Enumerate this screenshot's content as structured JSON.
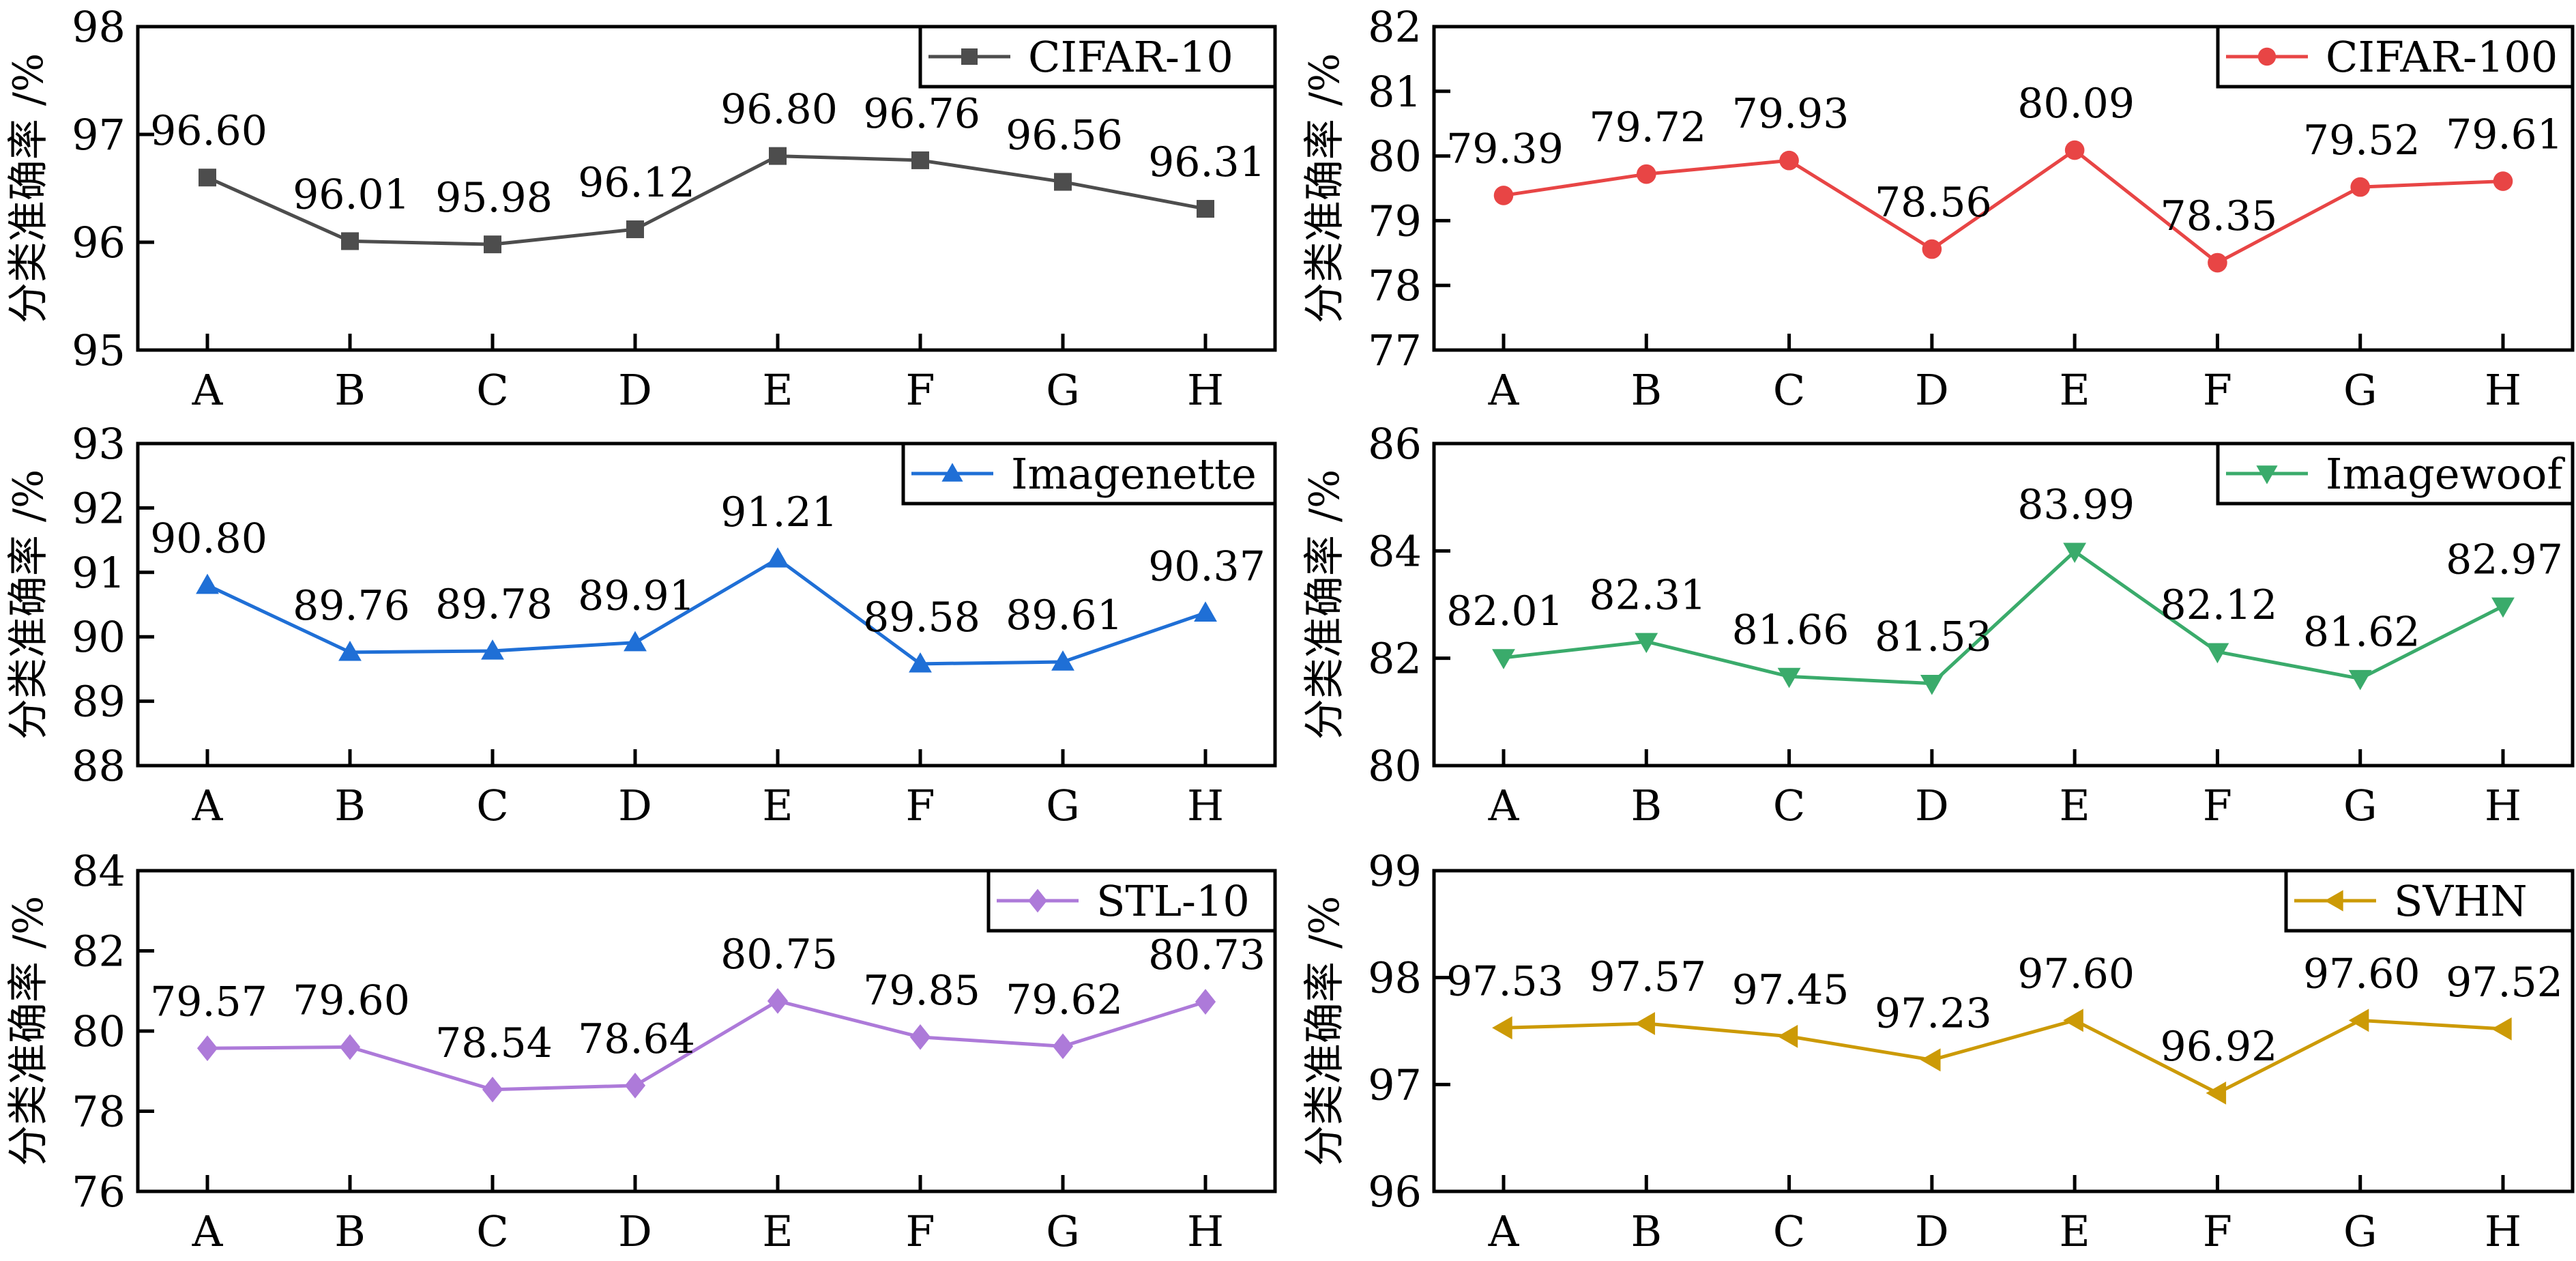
{
  "figure": {
    "shared_ylabel": "分类准确率 /%",
    "categories": [
      "A",
      "B",
      "C",
      "D",
      "E",
      "F",
      "G",
      "H"
    ]
  },
  "chart_data": [
    {
      "type": "line",
      "title": "",
      "legend": "CIFAR-10",
      "legend_position": "top-right",
      "marker": "square",
      "color": "#4d4d4d",
      "categories": [
        "A",
        "B",
        "C",
        "D",
        "E",
        "F",
        "G",
        "H"
      ],
      "values": [
        96.6,
        96.01,
        95.98,
        96.12,
        96.8,
        96.76,
        96.56,
        96.31
      ],
      "labels": [
        "96.60",
        "96.01",
        "95.98",
        "96.12",
        "96.80",
        "96.76",
        "96.56",
        "96.31"
      ],
      "xlabel": "",
      "ylabel": "分类准确率 /%",
      "ylim": [
        95,
        98
      ],
      "yticks": [
        95,
        96,
        97,
        98
      ],
      "grid": false
    },
    {
      "type": "line",
      "title": "",
      "legend": "CIFAR-100",
      "legend_position": "top-right",
      "marker": "circle",
      "color": "#e84545",
      "categories": [
        "A",
        "B",
        "C",
        "D",
        "E",
        "F",
        "G",
        "H"
      ],
      "values": [
        79.39,
        79.72,
        79.93,
        78.56,
        80.09,
        78.35,
        79.52,
        79.61
      ],
      "labels": [
        "79.39",
        "79.72",
        "79.93",
        "78.56",
        "80.09",
        "78.35",
        "79.52",
        "79.61"
      ],
      "xlabel": "",
      "ylabel": "分类准确率 /%",
      "ylim": [
        77,
        82
      ],
      "yticks": [
        77,
        78,
        79,
        80,
        81,
        82
      ],
      "grid": false
    },
    {
      "type": "line",
      "title": "",
      "legend": "Imagenette",
      "legend_position": "top-right",
      "marker": "triangle-up",
      "color": "#1f6fd6",
      "categories": [
        "A",
        "B",
        "C",
        "D",
        "E",
        "F",
        "G",
        "H"
      ],
      "values": [
        90.8,
        89.76,
        89.78,
        89.91,
        91.21,
        89.58,
        89.61,
        90.37
      ],
      "labels": [
        "90.80",
        "89.76",
        "89.78",
        "89.91",
        "91.21",
        "89.58",
        "89.61",
        "90.37"
      ],
      "xlabel": "",
      "ylabel": "分类准确率 /%",
      "ylim": [
        88,
        93
      ],
      "yticks": [
        88,
        89,
        90,
        91,
        92,
        93
      ],
      "grid": false
    },
    {
      "type": "line",
      "title": "",
      "legend": "Imagewoof",
      "legend_position": "top-right",
      "marker": "triangle-down",
      "color": "#3aab6b",
      "categories": [
        "A",
        "B",
        "C",
        "D",
        "E",
        "F",
        "G",
        "H"
      ],
      "values": [
        82.01,
        82.31,
        81.66,
        81.53,
        83.99,
        82.12,
        81.62,
        82.97
      ],
      "labels": [
        "82.01",
        "82.31",
        "81.66",
        "81.53",
        "83.99",
        "82.12",
        "81.62",
        "82.97"
      ],
      "xlabel": "",
      "ylabel": "分类准确率 /%",
      "ylim": [
        80,
        86
      ],
      "yticks": [
        80,
        82,
        84,
        86
      ],
      "grid": false
    },
    {
      "type": "line",
      "title": "",
      "legend": "STL-10",
      "legend_position": "top-right",
      "marker": "diamond",
      "color": "#ad7ad9",
      "categories": [
        "A",
        "B",
        "C",
        "D",
        "E",
        "F",
        "G",
        "H"
      ],
      "values": [
        79.57,
        79.6,
        78.54,
        78.64,
        80.75,
        79.85,
        79.62,
        80.73
      ],
      "labels": [
        "79.57",
        "79.60",
        "78.54",
        "78.64",
        "80.75",
        "79.85",
        "79.62",
        "80.73"
      ],
      "xlabel": "",
      "ylabel": "分类准确率 /%",
      "ylim": [
        76,
        84
      ],
      "yticks": [
        76,
        78,
        80,
        82,
        84
      ],
      "grid": false
    },
    {
      "type": "line",
      "title": "",
      "legend": "SVHN",
      "legend_position": "top-right",
      "marker": "triangle-left",
      "color": "#cc9a06",
      "categories": [
        "A",
        "B",
        "C",
        "D",
        "E",
        "F",
        "G",
        "H"
      ],
      "values": [
        97.53,
        97.57,
        97.45,
        97.23,
        97.6,
        96.92,
        97.6,
        97.52
      ],
      "labels": [
        "97.53",
        "97.57",
        "97.45",
        "97.23",
        "97.60",
        "96.92",
        "97.60",
        "97.52"
      ],
      "xlabel": "",
      "ylabel": "分类准确率 /%",
      "ylim": [
        96,
        99
      ],
      "yticks": [
        96,
        97,
        98,
        99
      ],
      "grid": false
    }
  ]
}
